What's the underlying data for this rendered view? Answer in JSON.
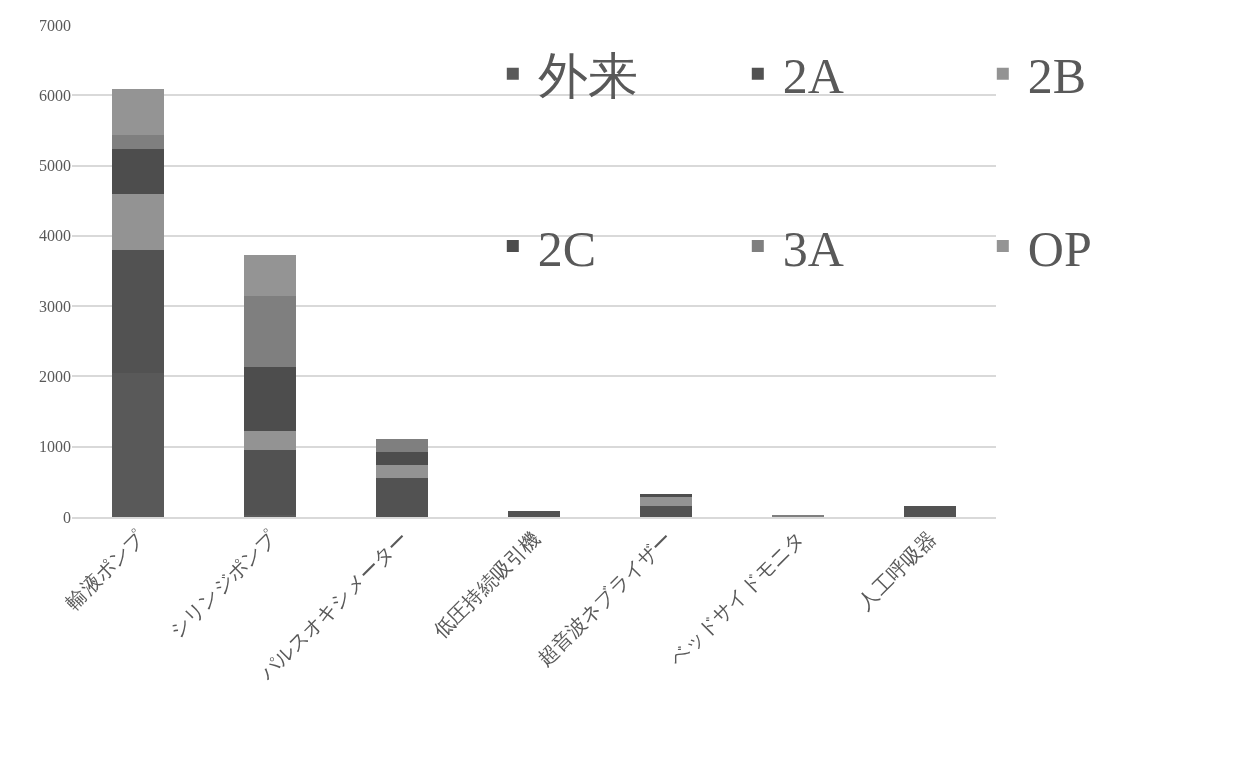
{
  "chart_data": {
    "type": "bar",
    "stacked": true,
    "categories": [
      "輸液ポンプ",
      "シリンジポンプ",
      "パルスオキシメーター",
      "低圧持続吸引機",
      "超音波ネブライザー",
      "ベッドサイドモニタ",
      "人工呼吸器"
    ],
    "series": [
      {
        "name": "外来",
        "color": "#595959",
        "values": [
          2050,
          30,
          0,
          0,
          0,
          0,
          0
        ]
      },
      {
        "name": "2A",
        "color": "#525252",
        "values": [
          1750,
          920,
          550,
          90,
          150,
          0,
          160
        ]
      },
      {
        "name": "2B",
        "color": "#939393",
        "values": [
          800,
          270,
          190,
          0,
          130,
          0,
          0
        ]
      },
      {
        "name": "2C",
        "color": "#4d4d4d",
        "values": [
          630,
          910,
          190,
          0,
          50,
          0,
          0
        ]
      },
      {
        "name": "3A",
        "color": "#7f7f7f",
        "values": [
          200,
          1010,
          180,
          0,
          0,
          20,
          0
        ]
      },
      {
        "name": "OP",
        "color": "#949494",
        "values": [
          660,
          590,
          0,
          0,
          0,
          0,
          0
        ]
      }
    ],
    "ylim": [
      0,
      7000
    ],
    "yticks": [
      0,
      1000,
      2000,
      3000,
      4000,
      5000,
      6000,
      7000
    ],
    "grid": "y",
    "legend": "top right"
  }
}
